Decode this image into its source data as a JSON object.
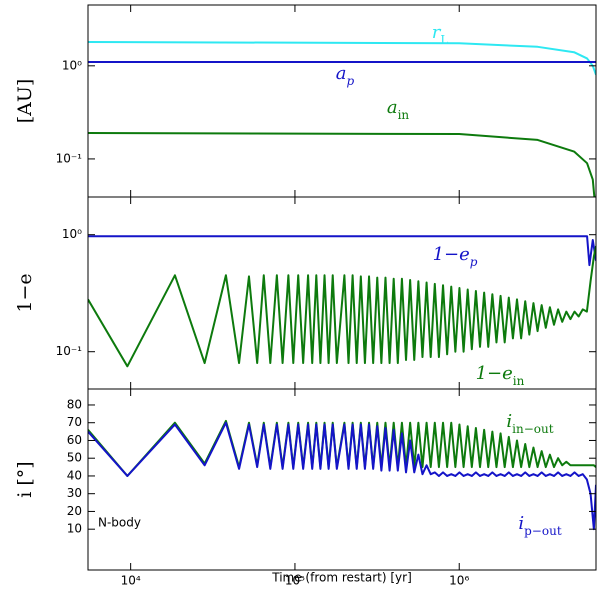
{
  "chart_data": [
    {
      "type": "line",
      "xscale": "log",
      "yscale": "log",
      "ylabel": "[AU]",
      "xlim": [
        5500,
        6800000
      ],
      "xticks": [
        10000,
        100000,
        1000000
      ],
      "ylim": [
        0.039,
        4.5
      ],
      "yticks": [
        {
          "value": 1,
          "label": "10⁰"
        },
        {
          "value": 0.1,
          "label": "10⁻¹"
        }
      ],
      "series": [
        {
          "name": "r",
          "subscript": "L",
          "color": "#2ee8f2",
          "x": [
            5500,
            1000000,
            3000000,
            5000000,
            6000000,
            6500000,
            6800000
          ],
          "values": [
            1.8,
            1.75,
            1.6,
            1.4,
            1.2,
            1.0,
            0.8
          ]
        },
        {
          "name": "a",
          "subscript": "p",
          "color": "#1414c8",
          "x": [
            5500,
            1000000,
            3000000,
            5000000,
            6000000,
            6500000,
            6800000
          ],
          "values": [
            1.1,
            1.1,
            1.1,
            1.1,
            1.1,
            1.1,
            1.1
          ]
        },
        {
          "name": "a",
          "subscript": "in",
          "color": "#0d7a0d",
          "x": [
            5500,
            1000000,
            3000000,
            5000000,
            6000000,
            6500000,
            6800000
          ],
          "values": [
            0.19,
            0.185,
            0.16,
            0.12,
            0.09,
            0.06,
            0.025
          ]
        }
      ]
    },
    {
      "type": "line",
      "xscale": "log",
      "yscale": "log",
      "ylabel": "1−e",
      "xlim": [
        5500,
        6800000
      ],
      "xticks": [
        10000,
        100000,
        1000000
      ],
      "ylim": [
        0.048,
        2.1
      ],
      "yticks": [
        {
          "value": 1,
          "label": "10⁰"
        },
        {
          "value": 0.1,
          "label": "10⁻¹"
        }
      ],
      "series": [
        {
          "name": "1−e",
          "subscript": "p",
          "color": "#1414c8",
          "x": [
            5500,
            10000,
            100000,
            1000000,
            5000000,
            6000000,
            6200000,
            6500000,
            6800000
          ],
          "values": [
            0.97,
            0.97,
            0.97,
            0.97,
            0.97,
            0.97,
            0.55,
            0.9,
            0.6
          ]
        },
        {
          "name": "1−e",
          "subscript": "in",
          "color": "#0d7a0d",
          "x": [
            5500,
            9550,
            18600,
            28200,
            38000,
            45700,
            52500,
            58900,
            64600,
            70800,
            77600,
            84100,
            91200,
            97700,
            104700,
            112200,
            120200,
            127400,
            134900,
            142900,
            151400,
            160300,
            169800,
            179900,
            200000,
            211900,
            224400,
            237700,
            251800,
            266700,
            282500,
            299300,
            317000,
            335800,
            355700,
            376800,
            399100,
            422800,
            447900,
            474400,
            502600,
            532400,
            564000,
            597400,
            632800,
            670400,
            710100,
            752200,
            796800,
            844100,
            894200,
            947200,
            1003000,
            1063000,
            1126000,
            1193000,
            1263000,
            1338000,
            1418000,
            1502000,
            1591000,
            1685000,
            1785000,
            1891000,
            2003000,
            2122000,
            2247000,
            2381000,
            2522000,
            2671000,
            2830000,
            2998000,
            3175000,
            3364000,
            3563000,
            3774000,
            3998000,
            4235000,
            4486000,
            4752000,
            5034000,
            5332000,
            5649000,
            5984000,
            6300000,
            6600000,
            6800000
          ],
          "values": [
            0.28,
            0.075,
            0.45,
            0.08,
            0.45,
            0.08,
            0.44,
            0.08,
            0.45,
            0.08,
            0.45,
            0.08,
            0.45,
            0.08,
            0.45,
            0.08,
            0.45,
            0.08,
            0.45,
            0.08,
            0.45,
            0.08,
            0.45,
            0.08,
            0.45,
            0.08,
            0.45,
            0.08,
            0.44,
            0.08,
            0.44,
            0.08,
            0.43,
            0.08,
            0.43,
            0.08,
            0.42,
            0.08,
            0.42,
            0.085,
            0.41,
            0.085,
            0.4,
            0.09,
            0.39,
            0.09,
            0.38,
            0.09,
            0.37,
            0.095,
            0.36,
            0.1,
            0.35,
            0.1,
            0.34,
            0.105,
            0.33,
            0.11,
            0.32,
            0.11,
            0.31,
            0.12,
            0.3,
            0.12,
            0.29,
            0.13,
            0.28,
            0.13,
            0.27,
            0.14,
            0.26,
            0.15,
            0.25,
            0.16,
            0.24,
            0.17,
            0.23,
            0.18,
            0.22,
            0.19,
            0.22,
            0.2,
            0.23,
            0.22,
            0.4,
            0.65,
            0.8
          ]
        }
      ]
    },
    {
      "type": "line",
      "xscale": "log",
      "yscale": "linear",
      "ylabel": "i [°]",
      "xlabel": "Time (from restart) [yr]",
      "annotation": "N-body",
      "xlim": [
        5500,
        6800000
      ],
      "xticks": [
        {
          "value": 10000,
          "label": "10⁴"
        },
        {
          "value": 100000,
          "label": "10⁵"
        },
        {
          "value": 1000000,
          "label": "10⁶"
        }
      ],
      "ylim": [
        -13,
        89
      ],
      "yticks": [
        10,
        20,
        30,
        40,
        50,
        60,
        70,
        80
      ],
      "series": [
        {
          "name": "i",
          "subscript": "in−out",
          "color": "#0d7a0d",
          "x": [
            5500,
            9550,
            18600,
            28200,
            38000,
            45700,
            52500,
            58900,
            64600,
            70800,
            77600,
            84100,
            91200,
            97700,
            104700,
            112200,
            120200,
            127400,
            134900,
            142900,
            151400,
            160300,
            169800,
            179900,
            200000,
            211900,
            224400,
            237700,
            251800,
            266700,
            282500,
            299300,
            317000,
            335800,
            355700,
            376800,
            399100,
            422800,
            447900,
            474400,
            502600,
            532400,
            564000,
            597400,
            632800,
            670400,
            710100,
            752200,
            796800,
            844100,
            894200,
            947200,
            1003000,
            1063000,
            1126000,
            1193000,
            1263000,
            1338000,
            1418000,
            1502000,
            1591000,
            1685000,
            1785000,
            1891000,
            2003000,
            2122000,
            2247000,
            2381000,
            2522000,
            2671000,
            2830000,
            2998000,
            3175000,
            3364000,
            3563000,
            3774000,
            3998000,
            4235000,
            4486000,
            4752000,
            5034000,
            5332000,
            5649000,
            5984000,
            6300000,
            6600000,
            6800000
          ],
          "values": [
            66,
            40,
            70,
            47,
            71,
            45,
            70,
            46,
            70,
            45,
            70,
            45,
            70,
            45,
            70,
            45,
            70,
            45,
            70,
            45,
            70,
            45,
            70,
            45,
            70,
            45,
            70,
            45,
            70,
            45,
            70,
            45,
            70,
            45,
            70,
            45,
            70,
            45,
            70,
            45,
            70,
            45,
            70,
            45,
            70,
            45,
            70,
            45,
            70,
            45,
            70,
            45,
            69,
            45,
            68,
            45,
            67,
            45,
            66,
            45,
            65,
            45,
            64,
            45,
            62,
            45,
            60,
            45,
            58,
            45,
            56,
            45,
            54,
            45,
            52,
            45,
            50,
            46,
            48,
            46,
            46,
            46,
            46,
            46,
            46,
            46,
            45
          ]
        },
        {
          "name": "i",
          "subscript": "p−out",
          "color": "#1414c8",
          "x": [
            5500,
            9550,
            18600,
            28200,
            38000,
            45700,
            52500,
            58900,
            64600,
            70800,
            77600,
            84100,
            91200,
            97700,
            104700,
            112200,
            120200,
            127400,
            134900,
            142900,
            151400,
            160300,
            169800,
            179900,
            200000,
            211900,
            224400,
            237700,
            251800,
            266700,
            282500,
            299300,
            317000,
            335800,
            355700,
            376800,
            399100,
            422800,
            447900,
            474400,
            502600,
            532400,
            564000,
            597400,
            632800,
            670400,
            710100,
            752200,
            796800,
            844100,
            894200,
            947200,
            1003000,
            1063000,
            1126000,
            1193000,
            1263000,
            1338000,
            1418000,
            1502000,
            1591000,
            1685000,
            1785000,
            1891000,
            2003000,
            2122000,
            2247000,
            2381000,
            2522000,
            2671000,
            2830000,
            2998000,
            3175000,
            3364000,
            3563000,
            3774000,
            3998000,
            4235000,
            4486000,
            4752000,
            5034000,
            5332000,
            5649000,
            5984000,
            6300000,
            6600000,
            6800000
          ],
          "values": [
            65,
            40,
            69,
            46,
            70,
            44,
            69,
            45,
            69,
            44,
            69,
            44,
            69,
            44,
            69,
            44,
            69,
            44,
            69,
            44,
            69,
            44,
            69,
            44,
            69,
            44,
            69,
            44,
            69,
            44,
            69,
            44,
            68,
            43,
            67,
            43,
            66,
            43,
            64,
            42,
            60,
            42,
            52,
            41,
            46,
            41,
            42,
            40,
            42,
            40,
            41,
            40,
            42,
            40,
            41,
            40,
            42,
            40,
            41,
            40,
            42,
            40,
            41,
            40,
            42,
            40,
            41,
            40,
            42,
            40,
            41,
            40,
            42,
            40,
            41,
            40,
            42,
            40,
            41,
            40,
            42,
            40,
            41,
            38,
            30,
            10,
            35
          ]
        }
      ]
    }
  ]
}
